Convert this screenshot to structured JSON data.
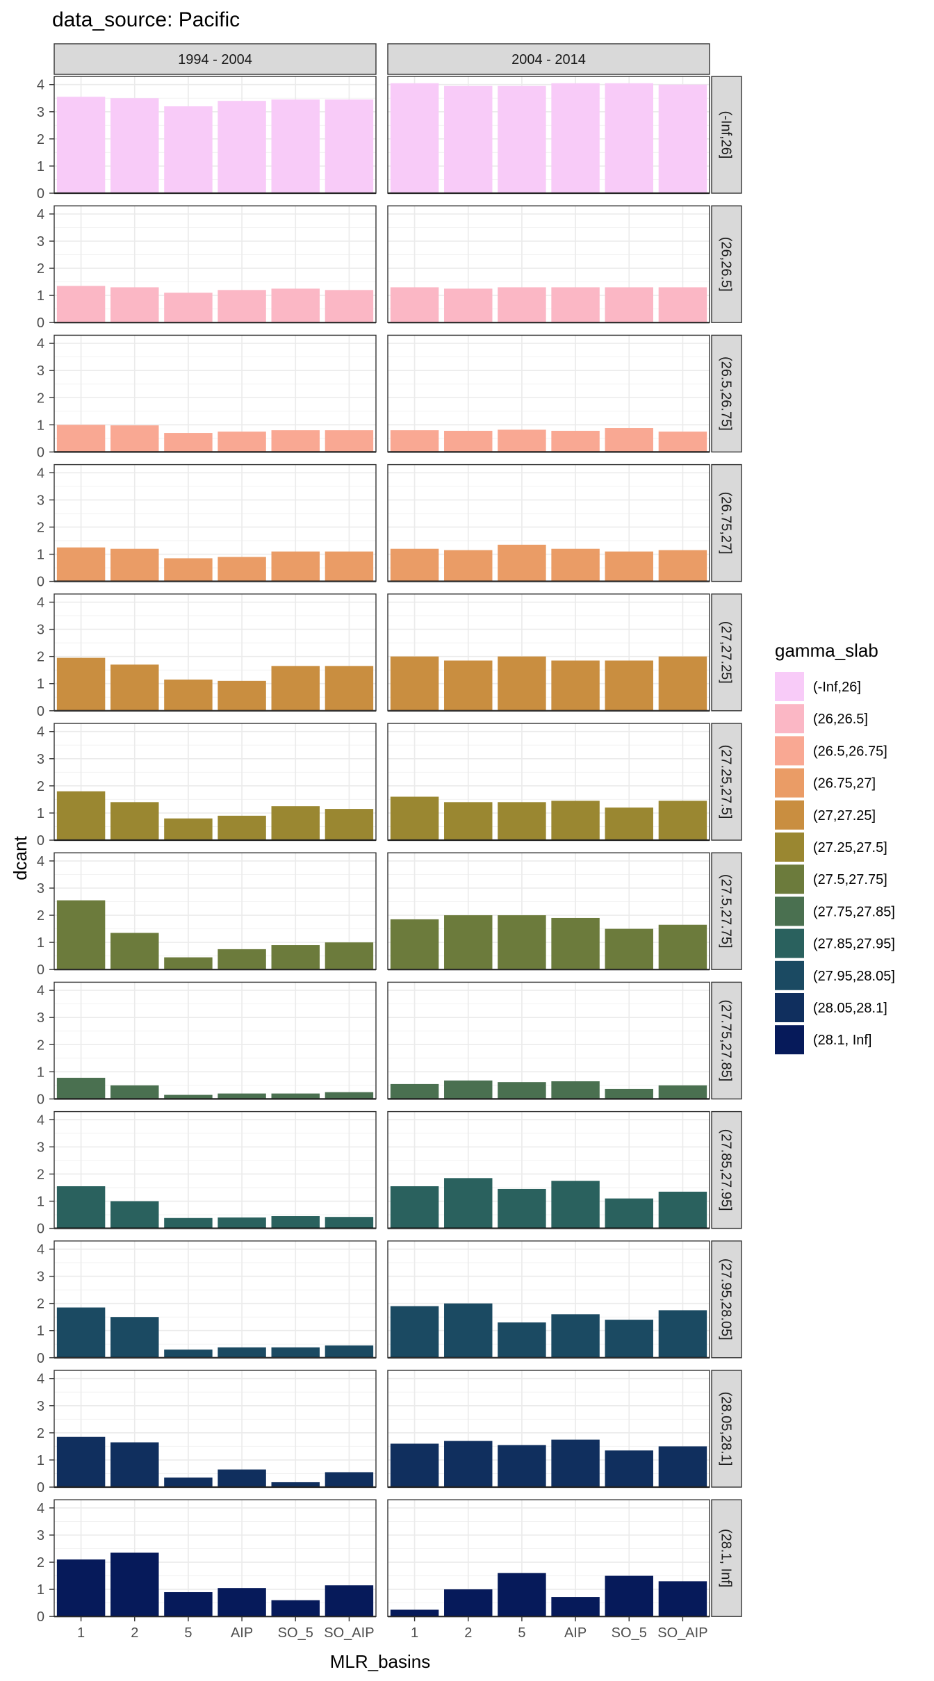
{
  "chart_data": {
    "type": "bar",
    "title": "data_source: Pacific",
    "xlabel": "MLR_basins",
    "ylabel": "dcant",
    "categories": [
      "1",
      "2",
      "5",
      "AIP",
      "SO_5",
      "SO_AIP"
    ],
    "ylim": [
      0,
      4.3
    ],
    "yticks": [
      0,
      1,
      2,
      3,
      4
    ],
    "grid": true,
    "legend_position": "right",
    "legend_title": "gamma_slab",
    "col_facets": [
      "1994 - 2004",
      "2004 - 2014"
    ],
    "rows": [
      {
        "label": "(-Inf,26]",
        "color": "#F8CBF8",
        "values": [
          [
            3.55,
            3.5,
            3.2,
            3.4,
            3.45,
            3.45
          ],
          [
            4.05,
            3.95,
            3.95,
            4.05,
            4.05,
            4.0
          ]
        ]
      },
      {
        "label": "(26,26.5]",
        "color": "#FBB7C5",
        "values": [
          [
            1.35,
            1.3,
            1.1,
            1.2,
            1.25,
            1.2
          ],
          [
            1.3,
            1.25,
            1.3,
            1.3,
            1.3,
            1.3
          ]
        ]
      },
      {
        "label": "(26.5,26.75]",
        "color": "#F9A893",
        "values": [
          [
            1.0,
            0.98,
            0.7,
            0.75,
            0.8,
            0.8
          ],
          [
            0.8,
            0.78,
            0.82,
            0.78,
            0.88,
            0.75
          ]
        ]
      },
      {
        "label": "(26.75,27]",
        "color": "#EA9C66",
        "values": [
          [
            1.25,
            1.2,
            0.85,
            0.9,
            1.1,
            1.1
          ],
          [
            1.2,
            1.15,
            1.35,
            1.2,
            1.1,
            1.15
          ]
        ]
      },
      {
        "label": "(27,27.25]",
        "color": "#C98E40",
        "values": [
          [
            1.95,
            1.7,
            1.15,
            1.1,
            1.65,
            1.65
          ],
          [
            2.0,
            1.85,
            2.0,
            1.85,
            1.85,
            2.0
          ]
        ]
      },
      {
        "label": "(27.25,27.5]",
        "color": "#9A8731",
        "values": [
          [
            1.8,
            1.4,
            0.8,
            0.9,
            1.25,
            1.15
          ],
          [
            1.6,
            1.4,
            1.4,
            1.45,
            1.2,
            1.45
          ]
        ]
      },
      {
        "label": "(27.5,27.75]",
        "color": "#6C7B3C",
        "values": [
          [
            2.55,
            1.35,
            0.45,
            0.75,
            0.9,
            1.0
          ],
          [
            1.85,
            2.0,
            2.0,
            1.9,
            1.5,
            1.65
          ]
        ]
      },
      {
        "label": "(27.75,27.85]",
        "color": "#4A7050",
        "values": [
          [
            0.78,
            0.5,
            0.15,
            0.2,
            0.2,
            0.25
          ],
          [
            0.55,
            0.68,
            0.62,
            0.65,
            0.37,
            0.5
          ]
        ]
      },
      {
        "label": "(27.85,27.95]",
        "color": "#2A615E",
        "values": [
          [
            1.55,
            1.0,
            0.38,
            0.4,
            0.45,
            0.42
          ],
          [
            1.55,
            1.85,
            1.45,
            1.75,
            1.1,
            1.35
          ]
        ]
      },
      {
        "label": "(27.95,28.05]",
        "color": "#1B4A62",
        "values": [
          [
            1.85,
            1.5,
            0.3,
            0.38,
            0.38,
            0.45
          ],
          [
            1.9,
            2.0,
            1.3,
            1.6,
            1.4,
            1.75
          ]
        ]
      },
      {
        "label": "(28.05,28.1]",
        "color": "#102F5E",
        "values": [
          [
            1.85,
            1.65,
            0.35,
            0.65,
            0.18,
            0.55
          ],
          [
            1.6,
            1.7,
            1.55,
            1.75,
            1.35,
            1.5
          ]
        ]
      },
      {
        "label": "(28.1, Inf]",
        "color": "#061A5A",
        "values": [
          [
            2.1,
            2.35,
            0.9,
            1.05,
            0.6,
            1.15
          ],
          [
            0.25,
            1.0,
            1.6,
            0.72,
            1.5,
            1.3
          ]
        ]
      }
    ]
  }
}
